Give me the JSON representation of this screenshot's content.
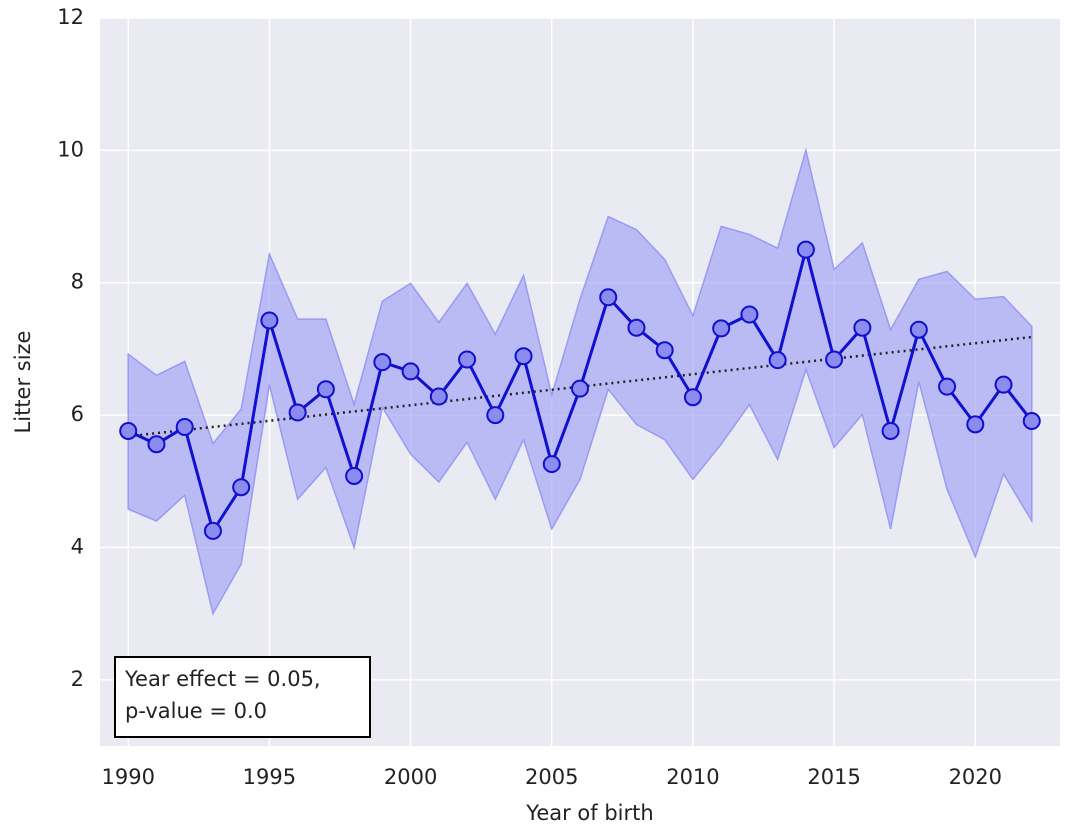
{
  "chart_data": {
    "type": "line",
    "xlabel": "Year of birth",
    "ylabel": "Litter size",
    "x": [
      1990,
      1991,
      1992,
      1993,
      1994,
      1995,
      1996,
      1997,
      1998,
      1999,
      2000,
      2001,
      2002,
      2003,
      2004,
      2005,
      2006,
      2007,
      2008,
      2009,
      2010,
      2011,
      2012,
      2013,
      2014,
      2015,
      2016,
      2017,
      2018,
      2019,
      2020,
      2021,
      2022
    ],
    "values": [
      5.76,
      5.56,
      5.82,
      4.25,
      4.91,
      7.43,
      6.04,
      6.39,
      5.08,
      6.8,
      6.66,
      6.28,
      6.84,
      6.0,
      6.89,
      5.26,
      6.4,
      7.78,
      7.32,
      6.98,
      6.27,
      7.31,
      7.52,
      6.83,
      8.5,
      6.84,
      7.32,
      5.76,
      7.29,
      6.43,
      5.86,
      6.46,
      5.91
    ],
    "upper": [
      6.92,
      6.6,
      6.81,
      5.57,
      6.09,
      8.43,
      7.45,
      7.45,
      6.16,
      7.72,
      7.99,
      7.4,
      7.99,
      7.22,
      8.11,
      6.3,
      7.75,
      9.0,
      8.8,
      8.35,
      7.5,
      8.85,
      8.73,
      8.52,
      10.0,
      8.2,
      8.6,
      7.29,
      8.05,
      8.17,
      7.75,
      7.79,
      7.34
    ],
    "lower": [
      4.58,
      4.4,
      4.79,
      3.0,
      3.75,
      6.46,
      4.73,
      5.21,
      4.0,
      6.12,
      5.41,
      4.99,
      5.59,
      4.73,
      5.63,
      4.28,
      5.03,
      6.39,
      5.86,
      5.63,
      5.03,
      5.56,
      6.16,
      5.33,
      6.69,
      5.51,
      6.01,
      4.28,
      6.51,
      4.88,
      3.86,
      5.11,
      4.4
    ],
    "color": "#1010d0",
    "marker_color": "#8c8cf0",
    "band_color": "#9a9af5",
    "trend": {
      "x": [
        1990,
        2022
      ],
      "values": [
        5.68,
        7.18
      ],
      "color": "#222222"
    },
    "annotation": [
      "Year effect = 0.05,",
      "p-value = 0.0"
    ],
    "xlim": [
      1989,
      2023
    ],
    "ylim": [
      1,
      12
    ],
    "xticks": [
      1990,
      1995,
      2000,
      2005,
      2010,
      2015,
      2020
    ],
    "yticks": [
      2,
      4,
      6,
      8,
      10,
      12
    ],
    "grid": true
  }
}
